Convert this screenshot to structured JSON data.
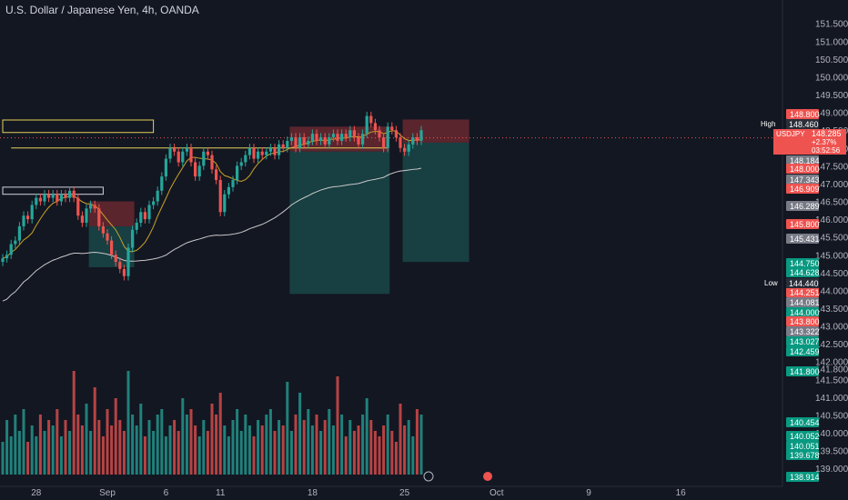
{
  "header": {
    "title": "U.S. Dollar / Japanese Yen, 4h, OANDA"
  },
  "colors": {
    "background": "#131722",
    "bull": "#26a69a",
    "bear": "#ef5350",
    "text": "#d1d4dc",
    "zone_red": "#8c2f35",
    "zone_teal": "#1b4d4d",
    "yellow": "#e5d15a",
    "ma_fast": "#c9a227",
    "ma_slow": "#c8c8c8"
  },
  "chart_data": {
    "type": "candlestick",
    "symbol": "USDJPY",
    "interval": "4h",
    "ylim": [
      138.75,
      151.8
    ],
    "price_ticks": [
      "151.500",
      "151.000",
      "150.500",
      "150.000",
      "149.500",
      "149.000",
      "148.500",
      "148.000",
      "147.500",
      "147.000",
      "146.500",
      "146.000",
      "145.500",
      "145.000",
      "144.500",
      "144.000",
      "143.500",
      "143.000",
      "142.500",
      "142.000",
      "141.800",
      "141.500",
      "141.000",
      "140.500",
      "140.000",
      "139.500",
      "139.000"
    ],
    "time_ticks": [
      "28",
      "Sep",
      "6",
      "11",
      "18",
      "25",
      "Oct",
      "9",
      "16"
    ],
    "time_tick_index": [
      8,
      25,
      39,
      52,
      74,
      96,
      118,
      140,
      162
    ],
    "last_price_label": "USDJPY",
    "last_price": "148.285",
    "change": "+2.37%",
    "countdown": "03:52:56",
    "high_label": "High",
    "high_value": "148.460",
    "low_label": "Low",
    "low_value": "144.440",
    "price_labels": [
      {
        "value": "148.800",
        "color": "#ef5350"
      },
      {
        "value": "148.184",
        "color": "#787b86"
      },
      {
        "value": "148.000",
        "color": "#ef5350"
      },
      {
        "value": "147.343",
        "color": "#787b86"
      },
      {
        "value": "146.909",
        "color": "#ef5350"
      },
      {
        "value": "146.289",
        "color": "#787b86"
      },
      {
        "value": "145.800",
        "color": "#ef5350"
      },
      {
        "value": "145.431",
        "color": "#787b86"
      },
      {
        "value": "144.750",
        "color": "#089981"
      },
      {
        "value": "144.628",
        "color": "#089981"
      },
      {
        "value": "144.251",
        "color": "#ef5350"
      },
      {
        "value": "144.081",
        "color": "#787b86"
      },
      {
        "value": "144.000",
        "color": "#089981"
      },
      {
        "value": "143.800",
        "color": "#ef5350"
      },
      {
        "value": "143.322",
        "color": "#787b86"
      },
      {
        "value": "143.027",
        "color": "#089981"
      },
      {
        "value": "142.459",
        "color": "#089981"
      },
      {
        "value": "141.800",
        "color": "#089981"
      },
      {
        "value": "140.454",
        "color": "#089981"
      },
      {
        "value": "140.052",
        "color": "#089981"
      },
      {
        "value": "140.051",
        "color": "#089981"
      },
      {
        "value": "139.678",
        "color": "#089981"
      },
      {
        "value": "138.914",
        "color": "#089981"
      }
    ],
    "positions": [
      {
        "kind": "long",
        "start": 21,
        "end": 31,
        "entry": 145.8,
        "target": 146.5,
        "stop": 144.65
      },
      {
        "kind": "long",
        "start": 69,
        "end": 92,
        "entry": 147.9,
        "target": 148.6,
        "stop": 143.9
      },
      {
        "kind": "long",
        "start": 96,
        "end": 111,
        "entry": 148.15,
        "target": 148.8,
        "stop": 144.8
      }
    ],
    "hlines": [
      {
        "y": 148.0,
        "start": 2,
        "end": 92,
        "color": "#e5d15a"
      }
    ],
    "boxes": [
      {
        "start": 0,
        "end": 24,
        "top": 146.9,
        "bottom": 146.7,
        "color": "#d1d4dc"
      }
    ],
    "vol_box": {
      "start": 0,
      "end": 36,
      "top_frac": 0.76,
      "bottom_frac": 0.735
    },
    "candles_open_close": [
      [
        144.8,
        144.9
      ],
      [
        144.9,
        145.0
      ],
      [
        145.0,
        145.3
      ],
      [
        145.3,
        145.4
      ],
      [
        145.4,
        145.8
      ],
      [
        145.8,
        146.1
      ],
      [
        146.1,
        146.0
      ],
      [
        146.0,
        146.4
      ],
      [
        146.4,
        146.6
      ],
      [
        146.6,
        146.5
      ],
      [
        146.5,
        146.7
      ],
      [
        146.7,
        146.6
      ],
      [
        146.6,
        146.7
      ],
      [
        146.7,
        146.5
      ],
      [
        146.5,
        146.7
      ],
      [
        146.7,
        146.6
      ],
      [
        146.6,
        146.8
      ],
      [
        146.8,
        146.6
      ],
      [
        146.6,
        146.1
      ],
      [
        146.1,
        145.9
      ],
      [
        145.9,
        146.3
      ],
      [
        146.3,
        146.4
      ],
      [
        146.4,
        146.3
      ],
      [
        146.3,
        145.8
      ],
      [
        145.8,
        145.6
      ],
      [
        145.6,
        145.4
      ],
      [
        145.4,
        145.0
      ],
      [
        145.0,
        144.8
      ],
      [
        144.8,
        144.6
      ],
      [
        144.6,
        144.4
      ],
      [
        144.4,
        145.2
      ],
      [
        145.2,
        145.7
      ],
      [
        145.7,
        145.9
      ],
      [
        145.9,
        146.2
      ],
      [
        146.2,
        146.0
      ],
      [
        146.0,
        146.4
      ],
      [
        146.4,
        146.5
      ],
      [
        146.5,
        146.8
      ],
      [
        146.8,
        147.2
      ],
      [
        147.2,
        147.7
      ],
      [
        147.7,
        148.0
      ],
      [
        148.0,
        147.9
      ],
      [
        147.9,
        147.6
      ],
      [
        147.6,
        147.9
      ],
      [
        147.9,
        148.0
      ],
      [
        148.0,
        147.6
      ],
      [
        147.6,
        147.2
      ],
      [
        147.2,
        147.5
      ],
      [
        147.5,
        147.9
      ],
      [
        147.9,
        147.8
      ],
      [
        147.8,
        147.4
      ],
      [
        147.4,
        147.1
      ],
      [
        147.1,
        146.2
      ],
      [
        146.2,
        146.7
      ],
      [
        146.7,
        146.9
      ],
      [
        146.9,
        147.1
      ],
      [
        147.1,
        147.5
      ],
      [
        147.5,
        147.6
      ],
      [
        147.6,
        147.8
      ],
      [
        147.8,
        148.0
      ],
      [
        148.0,
        147.7
      ],
      [
        147.7,
        147.9
      ],
      [
        147.9,
        147.8
      ],
      [
        147.8,
        147.9
      ],
      [
        147.9,
        148.0
      ],
      [
        148.0,
        147.8
      ],
      [
        147.8,
        148.1
      ],
      [
        148.1,
        148.0
      ],
      [
        148.0,
        148.2
      ],
      [
        148.2,
        148.3
      ],
      [
        148.3,
        148.0
      ],
      [
        148.0,
        148.3
      ],
      [
        148.3,
        148.1
      ],
      [
        148.1,
        148.2
      ],
      [
        148.2,
        148.4
      ],
      [
        148.4,
        148.2
      ],
      [
        148.2,
        148.3
      ],
      [
        148.3,
        148.1
      ],
      [
        148.1,
        148.3
      ],
      [
        148.3,
        148.4
      ],
      [
        148.4,
        148.2
      ],
      [
        148.2,
        148.4
      ],
      [
        148.4,
        148.3
      ],
      [
        148.3,
        148.5
      ],
      [
        148.5,
        148.3
      ],
      [
        148.3,
        148.1
      ],
      [
        148.1,
        148.4
      ],
      [
        148.4,
        148.9
      ],
      [
        148.9,
        148.7
      ],
      [
        148.7,
        148.5
      ],
      [
        148.5,
        148.3
      ],
      [
        148.3,
        148.0
      ],
      [
        148.0,
        148.6
      ],
      [
        148.6,
        148.5
      ],
      [
        148.5,
        148.3
      ],
      [
        148.3,
        148.0
      ],
      [
        148.0,
        147.9
      ],
      [
        147.9,
        148.1
      ],
      [
        148.1,
        148.3
      ],
      [
        148.3,
        148.2
      ],
      [
        148.2,
        148.5
      ]
    ],
    "volume": [
      0.3,
      0.5,
      0.35,
      0.55,
      0.4,
      0.6,
      0.3,
      0.45,
      0.35,
      0.55,
      0.4,
      0.5,
      0.45,
      0.6,
      0.35,
      0.5,
      0.4,
      0.95,
      0.55,
      0.45,
      0.65,
      0.4,
      0.8,
      0.5,
      0.35,
      0.6,
      0.45,
      0.7,
      0.5,
      0.4,
      0.95,
      0.55,
      0.45,
      0.65,
      0.35,
      0.5,
      0.4,
      0.55,
      0.6,
      0.35,
      0.45,
      0.5,
      0.4,
      0.7,
      0.55,
      0.6,
      0.45,
      0.35,
      0.5,
      0.4,
      0.65,
      0.55,
      0.75,
      0.45,
      0.35,
      0.5,
      0.6,
      0.4,
      0.55,
      0.45,
      0.35,
      0.5,
      0.45,
      0.55,
      0.6,
      0.4,
      0.5,
      0.45,
      0.85,
      0.4,
      0.55,
      0.75,
      0.5,
      0.6,
      0.45,
      0.55,
      0.4,
      0.5,
      0.6,
      0.45,
      0.9,
      0.55,
      0.35,
      0.5,
      0.4,
      0.45,
      0.55,
      0.7,
      0.5,
      0.4,
      0.35,
      0.45,
      0.55,
      0.4,
      0.3,
      0.65,
      0.45,
      0.5,
      0.35,
      0.6,
      0.55
    ]
  }
}
